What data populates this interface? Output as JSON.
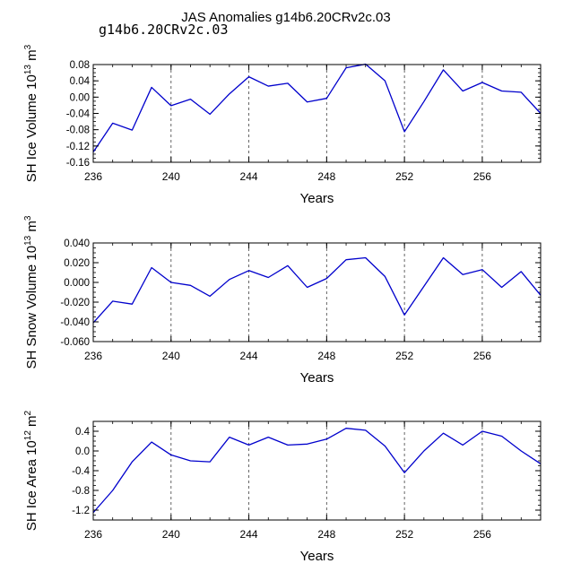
{
  "figure": {
    "title": "JAS Anomalies g14b6.20CRv2c.03",
    "case_label": "g14b6.20CRv2c.03",
    "case_label_color": "#6a6adf"
  },
  "chart_data": [
    {
      "type": "line",
      "ylabel": "SH Ice Volume 10",
      "ylabel_exp": "13",
      "ylabel_unit": " m",
      "ylabel_unit_exp": "3",
      "xlabel": "Years",
      "xlim": [
        236,
        259
      ],
      "ylim": [
        -0.16,
        0.08
      ],
      "xticks": [
        236,
        240,
        244,
        248,
        252,
        256
      ],
      "yticks": [
        -0.16,
        -0.12,
        -0.08,
        -0.04,
        0.0,
        0.04,
        0.08
      ],
      "ytick_labels": [
        "-0.16",
        "-0.12",
        "-0.08",
        "-0.04",
        "0.00",
        "0.04",
        "0.08"
      ],
      "grid": "dashed vertical lines at major x ticks",
      "line_color": "#0000cc",
      "x": [
        236,
        237,
        238,
        239,
        240,
        241,
        242,
        243,
        244,
        245,
        246,
        247,
        248,
        249,
        250,
        251,
        252,
        253,
        254,
        255,
        256,
        257,
        258,
        259
      ],
      "values": [
        -0.135,
        -0.064,
        -0.081,
        0.024,
        -0.021,
        -0.005,
        -0.042,
        0.008,
        0.05,
        0.027,
        0.034,
        -0.012,
        -0.003,
        0.072,
        0.081,
        0.04,
        -0.085,
        -0.011,
        0.067,
        0.015,
        0.036,
        0.015,
        0.012,
        -0.04
      ]
    },
    {
      "type": "line",
      "ylabel": "SH Snow Volume 10",
      "ylabel_exp": "13",
      "ylabel_unit": " m",
      "ylabel_unit_exp": "3",
      "xlabel": "Years",
      "xlim": [
        236,
        259
      ],
      "ylim": [
        -0.06,
        0.04
      ],
      "xticks": [
        236,
        240,
        244,
        248,
        252,
        256
      ],
      "yticks": [
        -0.06,
        -0.04,
        -0.02,
        0.0,
        0.02,
        0.04
      ],
      "ytick_labels": [
        "-0.060",
        "-0.040",
        "-0.020",
        "0.000",
        "0.020",
        "0.040"
      ],
      "grid": "dashed vertical lines at major x ticks",
      "line_color": "#0000cc",
      "x": [
        236,
        237,
        238,
        239,
        240,
        241,
        242,
        243,
        244,
        245,
        246,
        247,
        248,
        249,
        250,
        251,
        252,
        253,
        254,
        255,
        256,
        257,
        258,
        259
      ],
      "values": [
        -0.041,
        -0.019,
        -0.022,
        0.015,
        0.0,
        -0.003,
        -0.014,
        0.003,
        0.012,
        0.005,
        0.017,
        -0.005,
        0.004,
        0.023,
        0.025,
        0.006,
        -0.033,
        -0.004,
        0.025,
        0.008,
        0.013,
        -0.005,
        0.011,
        -0.013
      ]
    },
    {
      "type": "line",
      "ylabel": "SH Ice Area 10",
      "ylabel_exp": "12",
      "ylabel_unit": " m",
      "ylabel_unit_exp": "2",
      "xlabel": "Years",
      "xlim": [
        236,
        259
      ],
      "ylim": [
        -1.4,
        0.6
      ],
      "xticks": [
        236,
        240,
        244,
        248,
        252,
        256
      ],
      "yticks": [
        -1.2,
        -0.8,
        -0.4,
        0.0,
        0.4
      ],
      "ytick_labels": [
        "-1.2",
        "-0.8",
        "-0.4",
        "0.0",
        "0.4"
      ],
      "grid": "dashed vertical lines at major x ticks",
      "line_color": "#0000cc",
      "x": [
        236,
        237,
        238,
        239,
        240,
        241,
        242,
        243,
        244,
        245,
        246,
        247,
        248,
        249,
        250,
        251,
        252,
        253,
        254,
        255,
        256,
        257,
        258,
        259
      ],
      "values": [
        -1.25,
        -0.8,
        -0.22,
        0.18,
        -0.08,
        -0.2,
        -0.22,
        0.28,
        0.12,
        0.28,
        0.12,
        0.14,
        0.24,
        0.46,
        0.42,
        0.1,
        -0.44,
        0.0,
        0.36,
        0.12,
        0.4,
        0.3,
        0.0,
        -0.26
      ]
    }
  ]
}
